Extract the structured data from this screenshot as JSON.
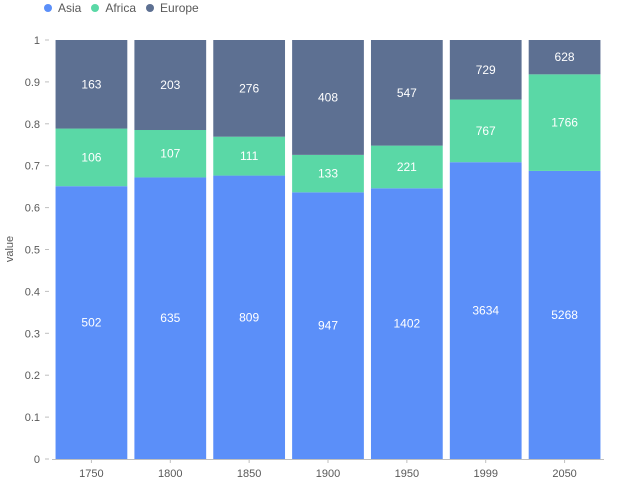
{
  "chart_data": {
    "type": "bar",
    "stacked": true,
    "normalized": true,
    "categories": [
      "1750",
      "1800",
      "1850",
      "1900",
      "1950",
      "1999",
      "2050"
    ],
    "series": [
      {
        "name": "Asia",
        "values": [
          502,
          635,
          809,
          947,
          1402,
          3634,
          5268
        ],
        "color": "#5B8FF9"
      },
      {
        "name": "Africa",
        "values": [
          106,
          107,
          111,
          133,
          221,
          767,
          1766
        ],
        "color": "#5AD8A6"
      },
      {
        "name": "Europe",
        "values": [
          163,
          203,
          276,
          408,
          547,
          729,
          628
        ],
        "color": "#5D7092"
      }
    ],
    "ylabel": "value",
    "xlabel": "",
    "ylim": [
      0,
      1
    ],
    "yticks": [
      "0",
      "0.1",
      "0.2",
      "0.3",
      "0.4",
      "0.5",
      "0.6",
      "0.7",
      "0.8",
      "0.9",
      "1"
    ],
    "legend_position": "top-left",
    "grid": false,
    "data_labels": true
  }
}
